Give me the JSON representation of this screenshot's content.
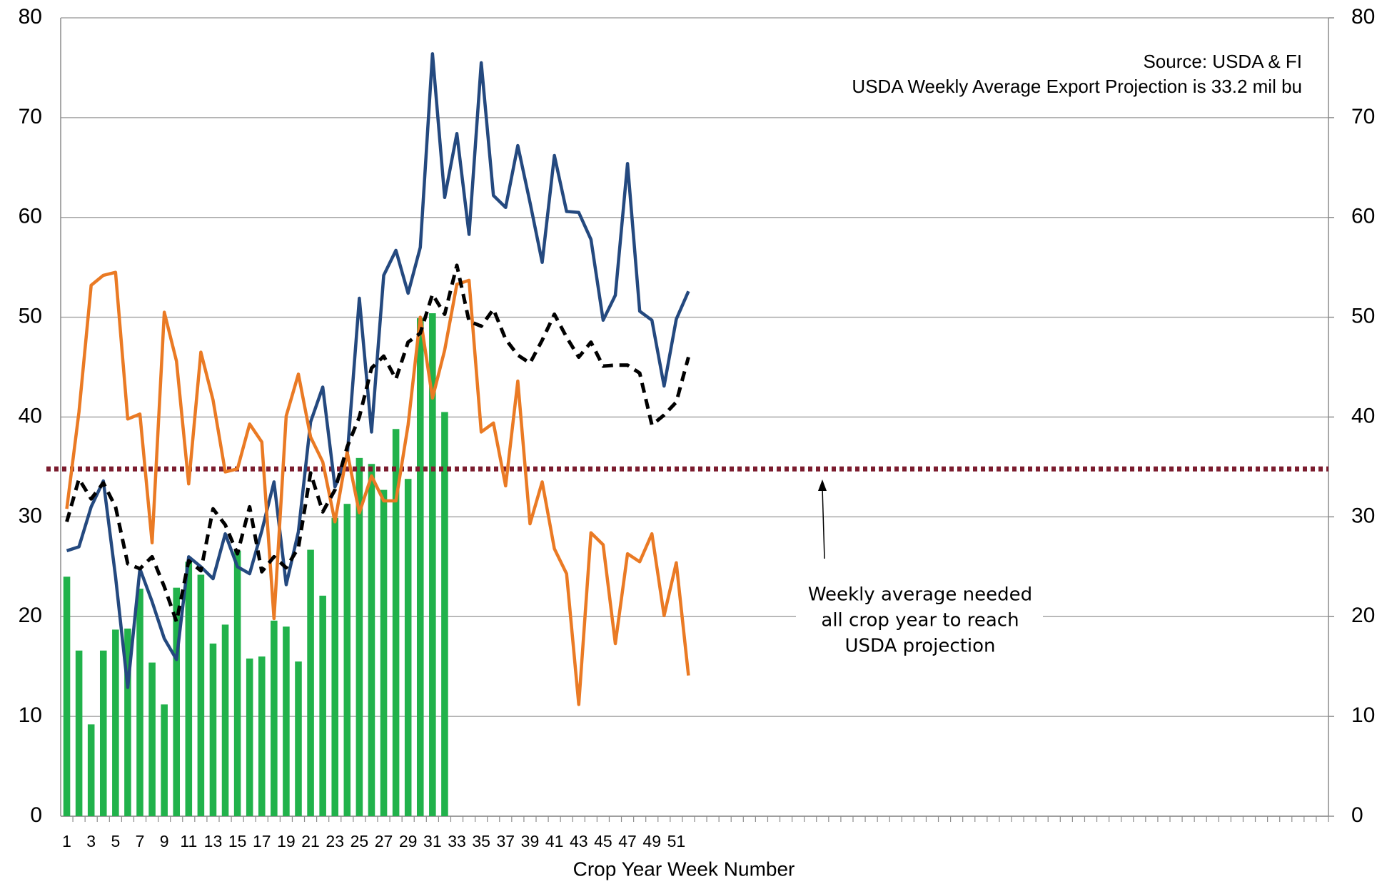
{
  "chart_data": {
    "type": "combo",
    "x_label": "Crop Year Week Number",
    "source_lines": [
      "Source: USDA & FI",
      "USDA Weekly Average Export Projection is 33.2 mil bu"
    ],
    "annotation_lines": [
      "Weekly average needed",
      "all crop year to reach",
      "USDA projection"
    ],
    "ylim": [
      0,
      80
    ],
    "yticks": [
      0,
      10,
      20,
      30,
      40,
      50,
      60,
      70,
      80
    ],
    "y2lim": [
      0,
      80
    ],
    "y2ticks": [
      0,
      10,
      20,
      30,
      40,
      50,
      60,
      70,
      80
    ],
    "grid": true,
    "reference_line": {
      "value": 34.8,
      "color": "#7b1c2e"
    },
    "categories": [
      "1",
      null,
      "3",
      null,
      "5",
      null,
      "7",
      null,
      "9",
      null,
      "11",
      null,
      "13",
      null,
      "15",
      null,
      "17",
      null,
      "19",
      null,
      "21",
      null,
      "23",
      null,
      "25",
      null,
      "27",
      null,
      "29",
      null,
      "31",
      null,
      "33",
      null,
      "35",
      null,
      "37",
      null,
      "39",
      null,
      "41",
      null,
      "43",
      null,
      "45",
      null,
      "47",
      null,
      "49",
      null,
      "51",
      null,
      null,
      null,
      null,
      null,
      null,
      null,
      null,
      null,
      null,
      null,
      null,
      null,
      null,
      null,
      null,
      null,
      null,
      null,
      null,
      null,
      null,
      null,
      null,
      null,
      null,
      null,
      null,
      null,
      null,
      null,
      null,
      null,
      null,
      null,
      null,
      null,
      null,
      null,
      null,
      null,
      null,
      null,
      null,
      null,
      null,
      null,
      null,
      null,
      null,
      null,
      null,
      null
    ],
    "series": [
      {
        "type": "bar",
        "color": "#21b24b",
        "values": [
          24.0,
          16.6,
          9.2,
          16.6,
          18.7,
          18.8,
          22.8,
          15.4,
          11.2,
          22.9,
          25.5,
          24.2,
          17.3,
          19.2,
          26.6,
          15.8,
          16.0,
          19.6,
          19.0,
          15.5,
          26.7,
          22.1,
          29.9,
          31.3,
          35.9,
          35.3,
          32.7,
          38.8,
          33.8,
          49.9,
          50.4,
          40.5,
          null,
          null,
          null,
          null,
          null,
          null,
          null,
          null,
          null,
          null,
          null,
          null,
          null,
          null,
          null,
          null,
          null,
          null,
          null,
          null,
          null,
          null,
          null,
          null,
          null,
          null,
          null,
          null,
          null,
          null,
          null,
          null,
          null,
          null,
          null,
          null,
          null,
          null,
          null,
          null,
          null,
          null,
          null,
          null,
          null,
          null,
          null,
          null,
          null,
          null,
          null,
          null,
          null,
          null,
          null,
          null,
          null,
          null,
          null,
          null,
          null,
          null,
          null,
          null,
          null,
          null,
          null,
          null,
          null,
          null,
          null,
          null
        ]
      },
      {
        "type": "line",
        "color": "#24497f",
        "dash": "none",
        "values": [
          26.6,
          27.0,
          31,
          33.6,
          24,
          12.9,
          24.8,
          21.5,
          17.8,
          15.7,
          26,
          25,
          23.8,
          28.3,
          25,
          24.3,
          28.6,
          33.5,
          23.2,
          28.5,
          39.5,
          43,
          33,
          36,
          51.9,
          38.5,
          54.2,
          56.7,
          52.4,
          57,
          76.4,
          62,
          68.4,
          58.3,
          75.5,
          62.2,
          61,
          67.2,
          61.5,
          55.5,
          66.2,
          60.6,
          60.5,
          57.8,
          49.7,
          52.2,
          65.4,
          50.6,
          49.7,
          43.1,
          49.8,
          52.6,
          null,
          null,
          null,
          null,
          null,
          null,
          null,
          null,
          null,
          null,
          null,
          null,
          null,
          null,
          null,
          null,
          null,
          null,
          null,
          null,
          null,
          null,
          null,
          null,
          null,
          null,
          null,
          null,
          null,
          null,
          null,
          null,
          null,
          null,
          null,
          null,
          null,
          null,
          null,
          null,
          null,
          null,
          null,
          null,
          null,
          null,
          null,
          null,
          null,
          null,
          null,
          null
        ]
      },
      {
        "type": "line",
        "color": "#ea7a24",
        "dash": "none",
        "values": [
          30.8,
          40.5,
          53.2,
          54.2,
          54.5,
          39.8,
          40.3,
          27.4,
          50.5,
          45.6,
          33.3,
          46.5,
          41.7,
          34.5,
          34.8,
          39.3,
          37.5,
          19.8,
          40.1,
          44.3,
          38,
          35.5,
          29.5,
          36.5,
          30.4,
          34.1,
          31.6,
          31.6,
          39.2,
          50,
          41.9,
          46.7,
          53.3,
          53.7,
          38.5,
          39.4,
          33.1,
          43.6,
          29.3,
          33.5,
          26.8,
          24.3,
          11.2,
          28.4,
          27.2,
          17.3,
          26.3,
          25.5,
          28.3,
          20.1,
          25.4,
          14.1,
          null,
          null,
          null,
          null,
          null,
          null,
          null,
          null,
          null,
          null,
          null,
          null,
          null,
          null,
          null,
          null,
          null,
          null,
          null,
          null,
          null,
          null,
          null,
          null,
          null,
          null,
          null,
          null,
          null,
          null,
          null,
          null,
          null,
          null,
          null,
          null,
          null,
          null,
          null,
          null,
          null,
          null,
          null,
          null,
          null,
          null,
          null,
          null,
          null,
          null,
          null,
          null
        ]
      },
      {
        "type": "line",
        "color": "#000000",
        "dash": "14 9",
        "values": [
          29.5,
          33.8,
          31.8,
          33.4,
          31,
          25.3,
          24.8,
          26,
          23,
          19.5,
          25.6,
          24.6,
          30.8,
          29.2,
          26.3,
          31,
          24.5,
          26,
          24.9,
          26.9,
          34.4,
          30.5,
          32.7,
          37,
          40,
          44.9,
          46.1,
          43.8,
          47.5,
          48.4,
          52.3,
          50.3,
          55.2,
          49.6,
          49.1,
          50.8,
          47.8,
          46.2,
          45.4,
          47.7,
          50.3,
          48,
          46,
          47.5,
          45.1,
          45.2,
          45.2,
          44.4,
          39.2,
          40.2,
          41.5,
          46,
          null,
          null,
          null,
          null,
          null,
          null,
          null,
          null,
          null,
          null,
          null,
          null,
          null,
          null,
          null,
          null,
          null,
          null,
          null,
          null,
          null,
          null,
          null,
          null,
          null,
          null,
          null,
          null,
          null,
          null,
          null,
          null,
          null,
          null,
          null,
          null,
          null,
          null,
          null,
          null,
          null,
          null,
          null,
          null,
          null,
          null,
          null,
          null,
          null,
          null,
          null,
          null
        ]
      }
    ]
  }
}
